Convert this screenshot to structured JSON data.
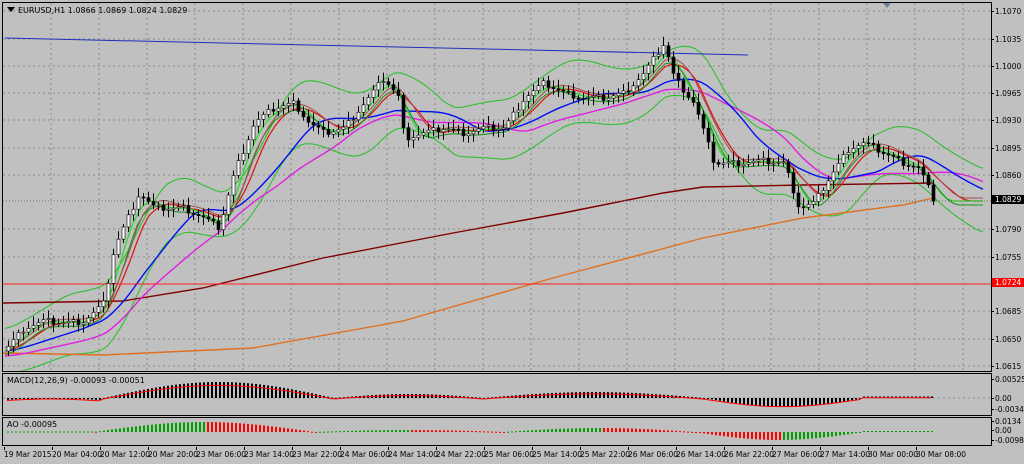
{
  "window": {
    "symbol": "EURUSD,H1",
    "ohlc": "1.0866 1.0869 1.0824 1.0829"
  },
  "macd": {
    "label": "MACD(12,26,9) -0.00093 -0.00051"
  },
  "ao": {
    "label": "AO -0.00095"
  },
  "price_axis": {
    "ticks": [
      "1.1070",
      "1.1035",
      "1.1000",
      "1.0965",
      "1.0930",
      "1.0895",
      "1.0860",
      "1.0790",
      "1.0755",
      "1.0685",
      "1.0650",
      "1.0615"
    ],
    "current_price": "1.0829",
    "level_price": "1.0724"
  },
  "macd_axis": {
    "ticks": [
      "0.00525",
      "0.00",
      "-0.00346"
    ]
  },
  "ao_axis": {
    "ticks": [
      "0.0134",
      "0.00",
      "-0.00986"
    ]
  },
  "time_axis": {
    "ticks": [
      "19 Mar 2015",
      "20 Mar 04:00",
      "20 Mar 12:00",
      "20 Mar 20:00",
      "23 Mar 06:00",
      "23 Mar 14:00",
      "23 Mar 22:00",
      "24 Mar 06:00",
      "24 Mar 14:00",
      "24 Mar 22:00",
      "25 Mar 06:00",
      "25 Mar 14:00",
      "25 Mar 22:00",
      "26 Mar 06:00",
      "26 Mar 14:00",
      "26 Mar 22:00",
      "27 Mar 06:00",
      "27 Mar 14:00",
      "30 Mar 00:00",
      "30 Mar 08:00"
    ]
  },
  "colors": {
    "background": "#c0c0c0",
    "grid": "#8a8a8a",
    "candle_up": "#ffffff",
    "candle_down": "#000000",
    "bollinger": "#2fbf2f",
    "ma_blue": "#0010f0",
    "ma_magenta": "#e020e0",
    "ma_red": "#e01010",
    "ma_lime": "#20e020",
    "ma_darkred": "#800000",
    "ma_orange": "#e07020",
    "trendline": "#1f2fbf",
    "level_line": "#ff2020",
    "current_price_badge": "#000000",
    "level_badge": "#ff0000",
    "ao_up": "#00a000",
    "ao_down": "#ff0000",
    "macd_signal": "#ff0000"
  },
  "icons": {
    "shift_marker": "triangle-down-icon",
    "title_marker": "triangle-down-icon"
  }
}
